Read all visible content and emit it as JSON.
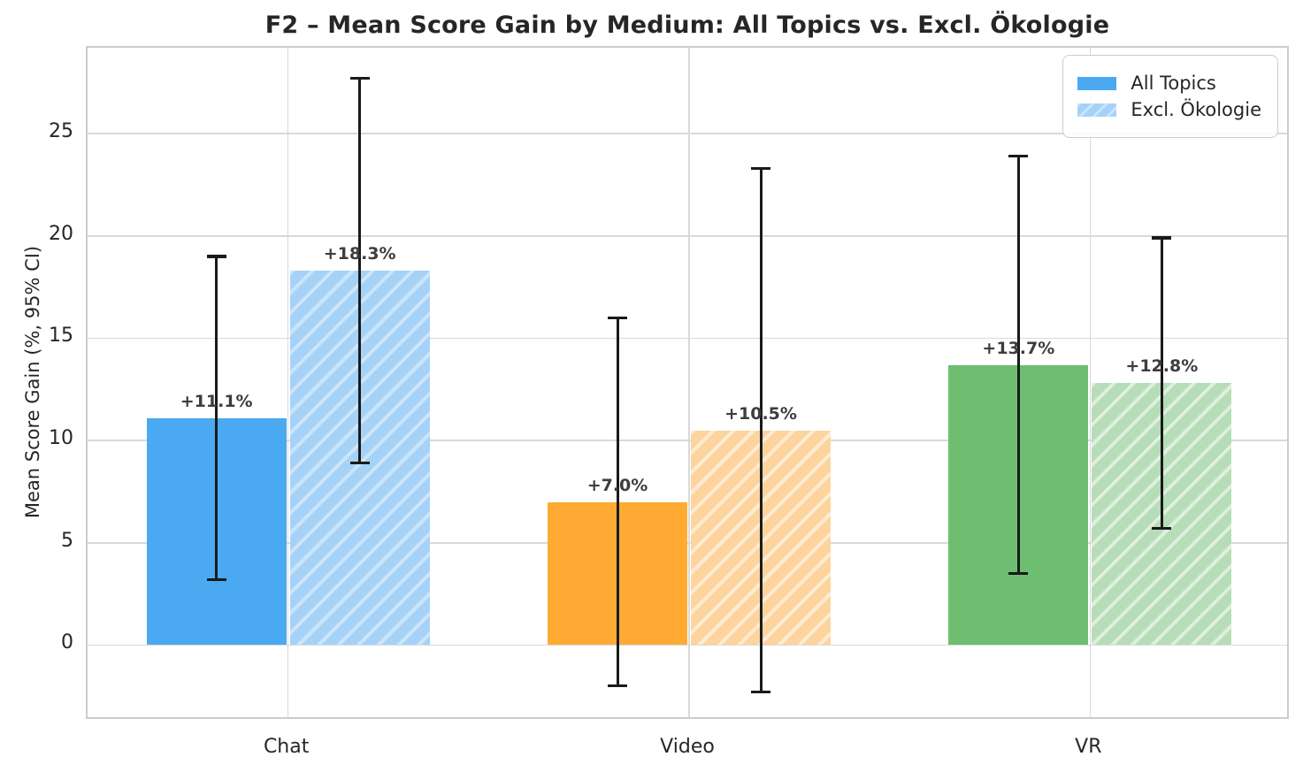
{
  "chart_data": {
    "type": "bar",
    "title": "F2 – Mean Score Gain by Medium: All Topics vs. Excl. Ökologie",
    "ylabel": "Mean Score Gain (%, 95% CI)",
    "xlabel": "",
    "categories": [
      "Chat",
      "Video",
      "VR"
    ],
    "series": [
      {
        "name": "All Topics",
        "hatch": false,
        "values": [
          11.1,
          7.0,
          13.7
        ],
        "ci_low": [
          3.2,
          -2.0,
          3.5
        ],
        "ci_high": [
          19.0,
          16.0,
          23.9
        ],
        "bar_labels": [
          "+11.1%",
          "+7.0%",
          "+13.7%"
        ],
        "colors": [
          "#4AA9F1",
          "#FFAB33",
          "#6DBE71"
        ]
      },
      {
        "name": "Excl. Ökologie",
        "hatch": true,
        "hatch_pattern": "/",
        "values": [
          18.3,
          10.5,
          12.8
        ],
        "ci_low": [
          8.9,
          -2.3,
          5.7
        ],
        "ci_high": [
          27.7,
          23.3,
          19.9
        ],
        "bar_labels": [
          "+18.3%",
          "+10.5%",
          "+12.8%"
        ],
        "colors": [
          "#A6D2F8",
          "#FDD49E",
          "#B6DDB8"
        ],
        "hatch_colors": [
          "#CBE5FB",
          "#FEEBD1",
          "#DEEFDE"
        ]
      }
    ],
    "yticks": [
      0,
      5,
      10,
      15,
      20,
      25
    ],
    "ylim": [
      -3.7,
      29.2
    ],
    "grid": true,
    "zero_line": true,
    "legend": {
      "position": "upper right",
      "entries": [
        "All Topics",
        "Excl. Ökologie"
      ]
    },
    "style": {
      "error_bar_color": "#1a1a1a",
      "grid_color": "#d9d9d9",
      "zero_line_color": "#737373",
      "text_color": "#262626",
      "annotation_color": "#3d3d3d",
      "background": "#ffffff"
    }
  }
}
